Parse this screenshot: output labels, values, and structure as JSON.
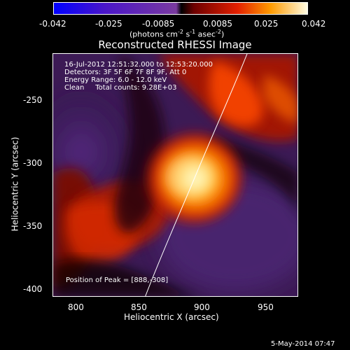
{
  "colorbar": {
    "ticks": [
      "-0.042",
      "-0.025",
      "-0.0085",
      "0.0085",
      "0.025",
      "0.042"
    ],
    "unit_prefix": "(photons cm",
    "unit_mid": " s",
    "unit_mid2": " asec",
    "unit_end": ")",
    "sup1": "-2",
    "sup2": "-1",
    "sup3": "-2"
  },
  "title": "Reconstructed RHESSI Image",
  "overlay": {
    "line1": "16-Jul-2012 12:51:32.000 to 12:53:20.000",
    "line2": "Detectors: 3F 5F 6F 7F 8F 9F, Att 0",
    "line3": "Energy Range: 6.0 - 12.0 keV",
    "line4": "Clean     Total counts: 9.28E+03",
    "peak": "Position of Peak = [888,-308]"
  },
  "axes": {
    "x_label": "Heliocentric X (arcsec)",
    "y_label": "Heliocentric Y (arcsec)",
    "x_ticks": [
      "800",
      "850",
      "900",
      "950"
    ],
    "y_ticks": [
      "-250",
      "-300",
      "-350",
      "-400"
    ]
  },
  "footer_date": "5-May-2014 07:47"
}
